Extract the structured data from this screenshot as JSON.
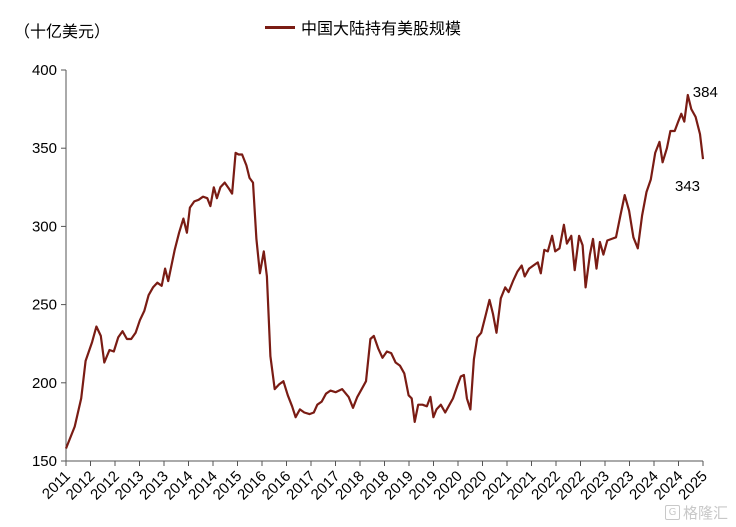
{
  "chart_data": {
    "type": "line",
    "title": "",
    "ylabel": "（十亿美元）",
    "xlabel": "",
    "ylim": [
      150,
      400
    ],
    "yticks": [
      150,
      200,
      250,
      300,
      350,
      400
    ],
    "x_tick_labels": [
      "2011",
      "2012",
      "2012",
      "2013",
      "2013",
      "2014",
      "2014",
      "2015",
      "2016",
      "2016",
      "2017",
      "2017",
      "2018",
      "2018",
      "2019",
      "2019",
      "2020",
      "2020",
      "2021",
      "2021",
      "2022",
      "2022",
      "2023",
      "2023",
      "2024",
      "2024",
      "2025"
    ],
    "grid": false,
    "legend_position": "top-center",
    "series": [
      {
        "name": "中国大陆持有美股规模",
        "color": "#7a1c14",
        "points": [
          [
            2011.0,
            158
          ],
          [
            2011.2,
            172
          ],
          [
            2011.35,
            190
          ],
          [
            2011.45,
            214
          ],
          [
            2011.6,
            226
          ],
          [
            2011.7,
            236
          ],
          [
            2011.8,
            230
          ],
          [
            2011.88,
            213
          ],
          [
            2012.0,
            221
          ],
          [
            2012.1,
            220
          ],
          [
            2012.2,
            229
          ],
          [
            2012.3,
            233
          ],
          [
            2012.4,
            228
          ],
          [
            2012.5,
            228
          ],
          [
            2012.6,
            232
          ],
          [
            2012.7,
            240
          ],
          [
            2012.8,
            246
          ],
          [
            2012.9,
            256
          ],
          [
            2013.0,
            261
          ],
          [
            2013.1,
            264
          ],
          [
            2013.2,
            262
          ],
          [
            2013.28,
            273
          ],
          [
            2013.35,
            265
          ],
          [
            2013.5,
            285
          ],
          [
            2013.6,
            296
          ],
          [
            2013.7,
            305
          ],
          [
            2013.78,
            296
          ],
          [
            2013.85,
            312
          ],
          [
            2013.95,
            316
          ],
          [
            2014.05,
            317
          ],
          [
            2014.15,
            319
          ],
          [
            2014.25,
            318
          ],
          [
            2014.32,
            313
          ],
          [
            2014.4,
            325
          ],
          [
            2014.47,
            318
          ],
          [
            2014.55,
            325
          ],
          [
            2014.65,
            328
          ],
          [
            2014.75,
            324
          ],
          [
            2014.82,
            321
          ],
          [
            2014.9,
            347
          ],
          [
            2014.97,
            346
          ],
          [
            2015.05,
            346
          ],
          [
            2015.15,
            339
          ],
          [
            2015.22,
            331
          ],
          [
            2015.3,
            328
          ],
          [
            2015.38,
            292
          ],
          [
            2015.46,
            270
          ],
          [
            2015.55,
            284
          ],
          [
            2015.62,
            268
          ],
          [
            2015.7,
            217
          ],
          [
            2015.8,
            196
          ],
          [
            2015.9,
            199
          ],
          [
            2016.0,
            201
          ],
          [
            2016.1,
            192
          ],
          [
            2016.2,
            185
          ],
          [
            2016.28,
            178
          ],
          [
            2016.38,
            183
          ],
          [
            2016.48,
            181
          ],
          [
            2016.6,
            180
          ],
          [
            2016.7,
            181
          ],
          [
            2016.78,
            186
          ],
          [
            2016.88,
            188
          ],
          [
            2016.98,
            193
          ],
          [
            2017.08,
            195
          ],
          [
            2017.2,
            194
          ],
          [
            2017.35,
            196
          ],
          [
            2017.5,
            191
          ],
          [
            2017.6,
            184
          ],
          [
            2017.7,
            191
          ],
          [
            2017.8,
            196
          ],
          [
            2017.9,
            201
          ],
          [
            2018.0,
            228
          ],
          [
            2018.08,
            230
          ],
          [
            2018.18,
            222
          ],
          [
            2018.28,
            216
          ],
          [
            2018.38,
            220
          ],
          [
            2018.48,
            219
          ],
          [
            2018.58,
            213
          ],
          [
            2018.68,
            211
          ],
          [
            2018.78,
            206
          ],
          [
            2018.88,
            192
          ],
          [
            2018.95,
            190
          ],
          [
            2019.02,
            175
          ],
          [
            2019.1,
            186
          ],
          [
            2019.2,
            186
          ],
          [
            2019.3,
            185
          ],
          [
            2019.38,
            191
          ],
          [
            2019.45,
            178
          ],
          [
            2019.52,
            183
          ],
          [
            2019.62,
            186
          ],
          [
            2019.72,
            181
          ],
          [
            2019.8,
            185
          ],
          [
            2019.9,
            190
          ],
          [
            2020.0,
            198
          ],
          [
            2020.08,
            204
          ],
          [
            2020.15,
            205
          ],
          [
            2020.22,
            190
          ],
          [
            2020.3,
            183
          ],
          [
            2020.38,
            215
          ],
          [
            2020.46,
            229
          ],
          [
            2020.55,
            232
          ],
          [
            2020.65,
            243
          ],
          [
            2020.74,
            253
          ],
          [
            2020.82,
            244
          ],
          [
            2020.9,
            232
          ],
          [
            2021.0,
            254
          ],
          [
            2021.1,
            261
          ],
          [
            2021.18,
            258
          ],
          [
            2021.28,
            265
          ],
          [
            2021.38,
            271
          ],
          [
            2021.48,
            275
          ],
          [
            2021.55,
            268
          ],
          [
            2021.65,
            273
          ],
          [
            2021.75,
            275
          ],
          [
            2021.85,
            277
          ],
          [
            2021.92,
            270
          ],
          [
            2022.0,
            285
          ],
          [
            2022.08,
            284
          ],
          [
            2022.18,
            294
          ],
          [
            2022.25,
            284
          ],
          [
            2022.35,
            286
          ],
          [
            2022.45,
            301
          ],
          [
            2022.52,
            289
          ],
          [
            2022.62,
            294
          ],
          [
            2022.7,
            272
          ],
          [
            2022.8,
            294
          ],
          [
            2022.88,
            288
          ],
          [
            2022.95,
            261
          ],
          [
            2023.05,
            282
          ],
          [
            2023.12,
            292
          ],
          [
            2023.2,
            273
          ],
          [
            2023.28,
            290
          ],
          [
            2023.36,
            282
          ],
          [
            2023.45,
            291
          ],
          [
            2023.55,
            292
          ],
          [
            2023.65,
            293
          ],
          [
            2023.75,
            307
          ],
          [
            2023.85,
            320
          ],
          [
            2023.95,
            310
          ],
          [
            2024.05,
            293
          ],
          [
            2024.15,
            286
          ],
          [
            2024.25,
            307
          ],
          [
            2024.35,
            322
          ],
          [
            2024.45,
            330
          ],
          [
            2024.55,
            347
          ],
          [
            2024.65,
            354
          ],
          [
            2024.72,
            341
          ],
          [
            2024.82,
            350
          ],
          [
            2024.9,
            361
          ],
          [
            2025.0,
            361
          ],
          [
            2025.08,
            367
          ],
          [
            2025.15,
            372
          ],
          [
            2025.22,
            367
          ],
          [
            2025.3,
            384
          ],
          [
            2025.38,
            375
          ],
          [
            2025.48,
            370
          ],
          [
            2025.58,
            359
          ],
          [
            2025.65,
            343
          ]
        ]
      }
    ],
    "annotations": [
      {
        "text": "384",
        "x": 2025.3,
        "y": 384
      },
      {
        "text": "343",
        "x": 2025.65,
        "y": 343
      }
    ]
  },
  "watermark": {
    "icon": "gelonghui-logo-icon",
    "text": "格隆汇"
  }
}
